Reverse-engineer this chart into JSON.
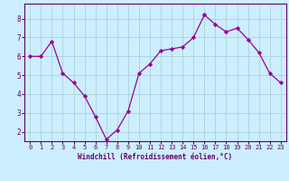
{
  "x": [
    0,
    1,
    2,
    3,
    4,
    5,
    6,
    7,
    8,
    9,
    10,
    11,
    12,
    13,
    14,
    15,
    16,
    17,
    18,
    19,
    20,
    21,
    22,
    23
  ],
  "y": [
    6.0,
    6.0,
    6.8,
    5.1,
    4.6,
    3.9,
    2.8,
    1.6,
    2.1,
    3.1,
    5.1,
    5.6,
    6.3,
    6.4,
    6.5,
    7.0,
    8.2,
    7.7,
    7.3,
    7.5,
    6.9,
    6.2,
    5.1,
    4.6
  ],
  "line_color": "#990099",
  "marker": "D",
  "marker_size": 2.2,
  "background_color": "#cceeff",
  "grid_color": "#aad4d4",
  "xlabel": "Windchill (Refroidissement éolien,°C)",
  "xlabel_color": "#660066",
  "tick_color": "#660066",
  "xlim": [
    -0.5,
    23.5
  ],
  "ylim": [
    1.5,
    8.8
  ],
  "yticks": [
    2,
    3,
    4,
    5,
    6,
    7,
    8
  ],
  "xticks": [
    0,
    1,
    2,
    3,
    4,
    5,
    6,
    7,
    8,
    9,
    10,
    11,
    12,
    13,
    14,
    15,
    16,
    17,
    18,
    19,
    20,
    21,
    22,
    23
  ],
  "spine_color": "#660066",
  "tick_fontsize": 5.0,
  "xlabel_fontsize": 5.5,
  "ytick_fontsize": 5.5
}
